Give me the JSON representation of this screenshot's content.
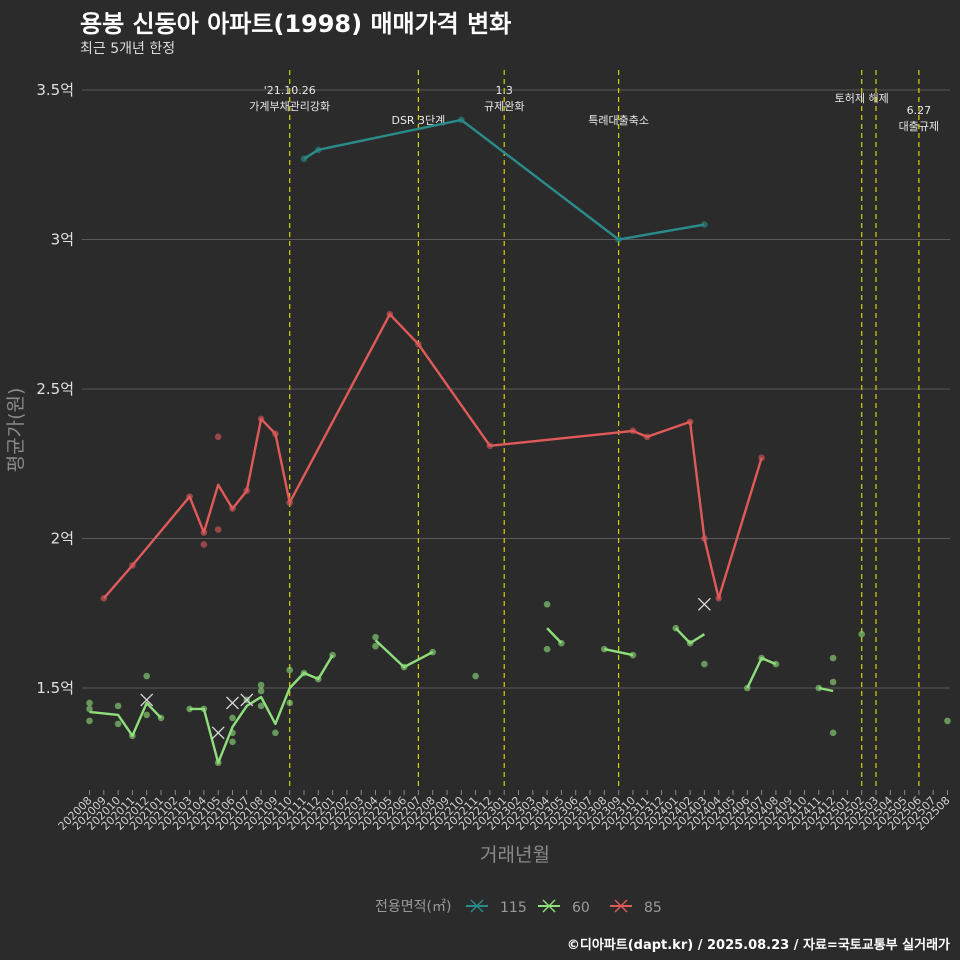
{
  "header": {
    "title": "용봉 신동아 아파트(1998) 매매가격 변화",
    "subtitle": "최근 5개년 한정"
  },
  "caption": "©디아파트(dapt.kr) / 2025.08.23 / 자료=국토교통부 실거래가",
  "colors": {
    "background": "#2b2b2b",
    "grid": "#5a5a5a",
    "event_line": "#d4d400"
  },
  "chart_data": {
    "type": "line",
    "title": "용봉 신동아 아파트(1998) 매매가격 변화",
    "subtitle": "최근 5개년 한정",
    "xlabel": "거래년월",
    "ylabel": "평균가(원)",
    "ylim": [
      1.15,
      3.55
    ],
    "yticks": [
      {
        "value": 1.5,
        "label": "1.5억"
      },
      {
        "value": 2.0,
        "label": "2억"
      },
      {
        "value": 2.5,
        "label": "2.5억"
      },
      {
        "value": 3.0,
        "label": "3억"
      },
      {
        "value": 3.5,
        "label": "3.5억"
      }
    ],
    "categories": [
      "202008",
      "202009",
      "202010",
      "202011",
      "202012",
      "202101",
      "202102",
      "202103",
      "202104",
      "202105",
      "202106",
      "202107",
      "202108",
      "202109",
      "202110",
      "202111",
      "202112",
      "202201",
      "202202",
      "202203",
      "202204",
      "202205",
      "202206",
      "202207",
      "202208",
      "202209",
      "202210",
      "202211",
      "202212",
      "202301",
      "202302",
      "202303",
      "202304",
      "202305",
      "202306",
      "202307",
      "202308",
      "202309",
      "202310",
      "202311",
      "202312",
      "202401",
      "202402",
      "202403",
      "202404",
      "202405",
      "202406",
      "202407",
      "202408",
      "202409",
      "202410",
      "202411",
      "202412",
      "202501",
      "202502",
      "202503",
      "202504",
      "202505",
      "202506",
      "202507",
      "202508"
    ],
    "legend_title": "전용면적(㎡)",
    "legend_position": "bottom",
    "grid": true,
    "events": [
      {
        "x": 14,
        "line1": "'21.10.26",
        "line2": "가계부채관리강화",
        "row": 0
      },
      {
        "x": 23,
        "line1": "DSR 3단계",
        "line2": "",
        "row": 2
      },
      {
        "x": 29,
        "line1": "1.3",
        "line2": "규제완화",
        "row": 0
      },
      {
        "x": 37,
        "line1": "특례대출축소",
        "line2": "",
        "row": 2
      },
      {
        "x": 54,
        "line1": "토허제 해제",
        "line2": "",
        "row": 1
      },
      {
        "x": 55,
        "line1": "",
        "line2": "",
        "row": 1
      },
      {
        "x": 58,
        "line1": "6.27",
        "line2": "대출규제",
        "row": 3
      }
    ],
    "series": [
      {
        "name": "115",
        "color": "#2a8c8a",
        "line": [
          [
            15,
            3.27
          ],
          [
            16,
            3.3
          ],
          [
            26,
            3.4
          ],
          [
            37,
            3.0
          ],
          [
            43,
            3.05
          ]
        ],
        "points": [
          [
            15,
            3.27
          ],
          [
            16,
            3.3
          ],
          [
            26,
            3.4
          ],
          [
            37,
            3.0
          ],
          [
            43,
            3.05
          ]
        ],
        "cancelled": []
      },
      {
        "name": "60",
        "color": "#8fe07a",
        "line_segments": [
          [
            [
              0,
              1.42
            ],
            [
              2,
              1.41
            ],
            [
              3,
              1.34
            ],
            [
              4,
              1.45
            ],
            [
              5,
              1.4
            ]
          ],
          [
            [
              7,
              1.43
            ],
            [
              8,
              1.43
            ],
            [
              9,
              1.25
            ],
            [
              10,
              1.37
            ],
            [
              11,
              1.44
            ],
            [
              12,
              1.47
            ],
            [
              13,
              1.38
            ],
            [
              14,
              1.5
            ],
            [
              15,
              1.55
            ],
            [
              16,
              1.53
            ],
            [
              17,
              1.61
            ]
          ],
          [
            [
              20,
              1.66
            ],
            [
              22,
              1.57
            ],
            [
              24,
              1.62
            ]
          ],
          [
            [
              32,
              1.7
            ],
            [
              33,
              1.65
            ]
          ],
          [
            [
              36,
              1.63
            ],
            [
              38,
              1.61
            ]
          ],
          [
            [
              41,
              1.7
            ],
            [
              42,
              1.65
            ],
            [
              43,
              1.68
            ]
          ],
          [
            [
              46,
              1.5
            ],
            [
              47,
              1.6
            ],
            [
              48,
              1.58
            ]
          ],
          [
            [
              51,
              1.5
            ],
            [
              52,
              1.49
            ]
          ]
        ],
        "points": [
          [
            0,
            1.45
          ],
          [
            0,
            1.43
          ],
          [
            0,
            1.39
          ],
          [
            2,
            1.44
          ],
          [
            2,
            1.38
          ],
          [
            3,
            1.34
          ],
          [
            4,
            1.54
          ],
          [
            4,
            1.41
          ],
          [
            5,
            1.4
          ],
          [
            7,
            1.43
          ],
          [
            8,
            1.43
          ],
          [
            9,
            1.25
          ],
          [
            10,
            1.4
          ],
          [
            10,
            1.35
          ],
          [
            10,
            1.32
          ],
          [
            11,
            1.46
          ],
          [
            12,
            1.51
          ],
          [
            12,
            1.49
          ],
          [
            12,
            1.44
          ],
          [
            13,
            1.35
          ],
          [
            14,
            1.56
          ],
          [
            14,
            1.45
          ],
          [
            15,
            1.55
          ],
          [
            16,
            1.53
          ],
          [
            17,
            1.61
          ],
          [
            20,
            1.67
          ],
          [
            20,
            1.64
          ],
          [
            22,
            1.57
          ],
          [
            24,
            1.62
          ],
          [
            27,
            1.54
          ],
          [
            32,
            1.78
          ],
          [
            32,
            1.63
          ],
          [
            33,
            1.65
          ],
          [
            36,
            1.63
          ],
          [
            38,
            1.61
          ],
          [
            41,
            1.7
          ],
          [
            42,
            1.65
          ],
          [
            43,
            1.58
          ],
          [
            46,
            1.5
          ],
          [
            47,
            1.6
          ],
          [
            48,
            1.58
          ],
          [
            51,
            1.5
          ],
          [
            52,
            1.6
          ],
          [
            52,
            1.52
          ],
          [
            52,
            1.35
          ],
          [
            54,
            1.68
          ],
          [
            60,
            1.39
          ]
        ],
        "cancelled": [
          [
            4,
            1.46
          ],
          [
            9,
            1.35
          ],
          [
            10,
            1.45
          ],
          [
            11,
            1.46
          ],
          [
            43,
            1.78
          ]
        ]
      },
      {
        "name": "85",
        "color": "#e05a5a",
        "line": [
          [
            1,
            1.8
          ],
          [
            3,
            1.91
          ],
          [
            7,
            2.14
          ],
          [
            8,
            2.02
          ],
          [
            9,
            2.18
          ],
          [
            10,
            2.1
          ],
          [
            11,
            2.16
          ],
          [
            12,
            2.4
          ],
          [
            13,
            2.35
          ],
          [
            14,
            2.12
          ],
          [
            21,
            2.75
          ],
          [
            23,
            2.65
          ],
          [
            28,
            2.31
          ],
          [
            38,
            2.36
          ],
          [
            39,
            2.34
          ],
          [
            42,
            2.39
          ],
          [
            43,
            2.0
          ],
          [
            44,
            1.8
          ],
          [
            47,
            2.27
          ]
        ],
        "points": [
          [
            1,
            1.8
          ],
          [
            3,
            1.91
          ],
          [
            7,
            2.14
          ],
          [
            8,
            2.02
          ],
          [
            8,
            1.98
          ],
          [
            9,
            2.34
          ],
          [
            9,
            2.03
          ],
          [
            10,
            2.1
          ],
          [
            11,
            2.16
          ],
          [
            12,
            2.4
          ],
          [
            13,
            2.35
          ],
          [
            14,
            2.12
          ],
          [
            21,
            2.75
          ],
          [
            23,
            2.65
          ],
          [
            28,
            2.31
          ],
          [
            38,
            2.36
          ],
          [
            39,
            2.34
          ],
          [
            42,
            2.39
          ],
          [
            43,
            2.0
          ],
          [
            44,
            1.8
          ],
          [
            47,
            2.27
          ]
        ],
        "cancelled": []
      }
    ]
  }
}
